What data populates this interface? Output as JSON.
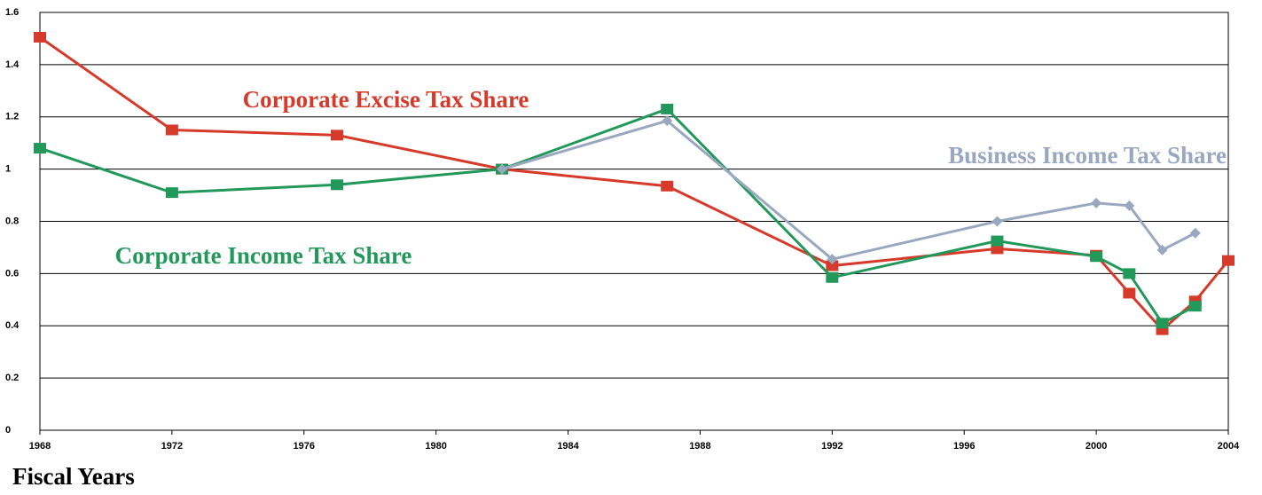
{
  "chart_data": {
    "type": "line",
    "x_label": "Fiscal Years",
    "x": [
      1968,
      1972,
      1977,
      1982,
      1987,
      1992,
      1997,
      2000,
      2001,
      2002,
      2003,
      2004
    ],
    "series": [
      {
        "name": "Corporate Excise Tax Share",
        "color": "#d63a2a",
        "marker": "square",
        "values": [
          1.505,
          1.15,
          1.13,
          1.0,
          0.935,
          0.63,
          0.695,
          0.67,
          0.525,
          0.385,
          0.495,
          0.65
        ]
      },
      {
        "name": "Corporate Income Tax Share",
        "color": "#22985a",
        "marker": "square",
        "values": [
          1.08,
          0.91,
          0.94,
          1.0,
          1.23,
          0.585,
          0.725,
          0.665,
          0.6,
          0.41,
          0.475,
          null
        ]
      },
      {
        "name": "Business Income Tax Share",
        "color": "#99a8bf",
        "marker": "diamond",
        "values": [
          null,
          null,
          null,
          1.0,
          1.185,
          0.655,
          0.8,
          0.87,
          0.86,
          0.69,
          0.755,
          null
        ]
      }
    ],
    "xlim": [
      1968,
      2004
    ],
    "xticks": [
      1968,
      1972,
      1976,
      1980,
      1984,
      1988,
      1992,
      1996,
      2000,
      2004
    ],
    "ylim": [
      0,
      1.6
    ],
    "yticks": [
      0,
      0.2,
      0.4,
      0.6,
      0.8,
      1,
      1.2,
      1.4,
      1.6
    ],
    "grid": true
  }
}
